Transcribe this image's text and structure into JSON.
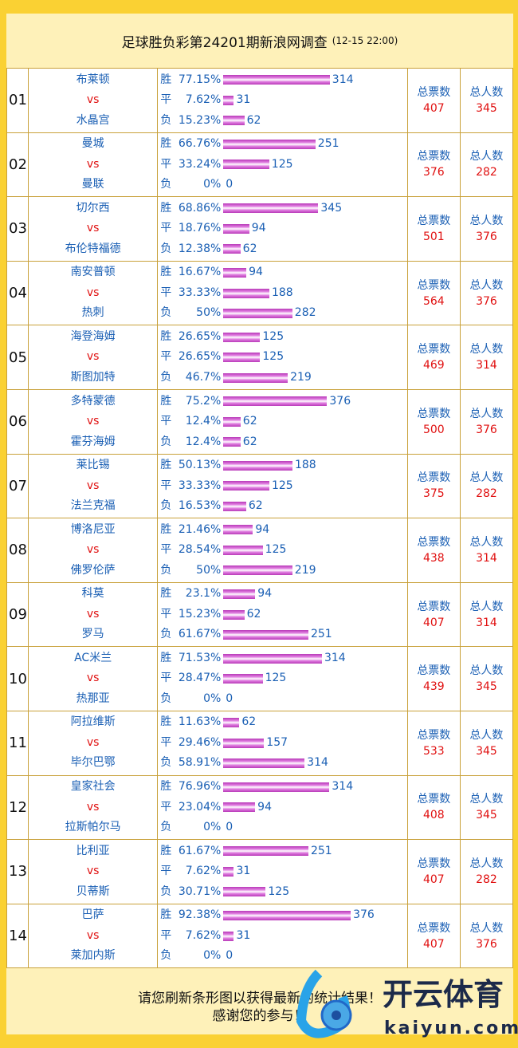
{
  "header": {
    "title": "足球胜负彩第24201期新浪网调查",
    "time": "(12-15 22:00)"
  },
  "labels": {
    "vs": "vs",
    "win": "胜",
    "draw": "平",
    "lose": "负",
    "total_votes": "总票数",
    "total_people": "总人数"
  },
  "matches": [
    {
      "no": "01",
      "home": "布莱顿",
      "away": "水晶宫",
      "win": {
        "pct": "77.15%",
        "frac": 77.15,
        "count": "314"
      },
      "draw": {
        "pct": "7.62%",
        "frac": 7.62,
        "count": "31"
      },
      "lose": {
        "pct": "15.23%",
        "frac": 15.23,
        "count": "62"
      },
      "votes": "407",
      "people": "345"
    },
    {
      "no": "02",
      "home": "曼城",
      "away": "曼联",
      "win": {
        "pct": "66.76%",
        "frac": 66.76,
        "count": "251"
      },
      "draw": {
        "pct": "33.24%",
        "frac": 33.24,
        "count": "125"
      },
      "lose": {
        "pct": "0%",
        "frac": 0,
        "count": "0"
      },
      "votes": "376",
      "people": "282"
    },
    {
      "no": "03",
      "home": "切尔西",
      "away": "布伦特福德",
      "win": {
        "pct": "68.86%",
        "frac": 68.86,
        "count": "345"
      },
      "draw": {
        "pct": "18.76%",
        "frac": 18.76,
        "count": "94"
      },
      "lose": {
        "pct": "12.38%",
        "frac": 12.38,
        "count": "62"
      },
      "votes": "501",
      "people": "376"
    },
    {
      "no": "04",
      "home": "南安普顿",
      "away": "热刺",
      "win": {
        "pct": "16.67%",
        "frac": 16.67,
        "count": "94"
      },
      "draw": {
        "pct": "33.33%",
        "frac": 33.33,
        "count": "188"
      },
      "lose": {
        "pct": "50%",
        "frac": 50,
        "count": "282"
      },
      "votes": "564",
      "people": "376"
    },
    {
      "no": "05",
      "home": "海登海姆",
      "away": "斯图加特",
      "win": {
        "pct": "26.65%",
        "frac": 26.65,
        "count": "125"
      },
      "draw": {
        "pct": "26.65%",
        "frac": 26.65,
        "count": "125"
      },
      "lose": {
        "pct": "46.7%",
        "frac": 46.7,
        "count": "219"
      },
      "votes": "469",
      "people": "314"
    },
    {
      "no": "06",
      "home": "多特蒙德",
      "away": "霍芬海姆",
      "win": {
        "pct": "75.2%",
        "frac": 75.2,
        "count": "376"
      },
      "draw": {
        "pct": "12.4%",
        "frac": 12.4,
        "count": "62"
      },
      "lose": {
        "pct": "12.4%",
        "frac": 12.4,
        "count": "62"
      },
      "votes": "500",
      "people": "376"
    },
    {
      "no": "07",
      "home": "莱比锡",
      "away": "法兰克福",
      "win": {
        "pct": "50.13%",
        "frac": 50.13,
        "count": "188"
      },
      "draw": {
        "pct": "33.33%",
        "frac": 33.33,
        "count": "125"
      },
      "lose": {
        "pct": "16.53%",
        "frac": 16.53,
        "count": "62"
      },
      "votes": "375",
      "people": "282"
    },
    {
      "no": "08",
      "home": "博洛尼亚",
      "away": "佛罗伦萨",
      "win": {
        "pct": "21.46%",
        "frac": 21.46,
        "count": "94"
      },
      "draw": {
        "pct": "28.54%",
        "frac": 28.54,
        "count": "125"
      },
      "lose": {
        "pct": "50%",
        "frac": 50,
        "count": "219"
      },
      "votes": "438",
      "people": "314"
    },
    {
      "no": "09",
      "home": "科莫",
      "away": "罗马",
      "win": {
        "pct": "23.1%",
        "frac": 23.1,
        "count": "94"
      },
      "draw": {
        "pct": "15.23%",
        "frac": 15.23,
        "count": "62"
      },
      "lose": {
        "pct": "61.67%",
        "frac": 61.67,
        "count": "251"
      },
      "votes": "407",
      "people": "314"
    },
    {
      "no": "10",
      "home": "AC米兰",
      "away": "热那亚",
      "win": {
        "pct": "71.53%",
        "frac": 71.53,
        "count": "314"
      },
      "draw": {
        "pct": "28.47%",
        "frac": 28.47,
        "count": "125"
      },
      "lose": {
        "pct": "0%",
        "frac": 0,
        "count": "0"
      },
      "votes": "439",
      "people": "345"
    },
    {
      "no": "11",
      "home": "阿拉维斯",
      "away": "毕尔巴鄂",
      "win": {
        "pct": "11.63%",
        "frac": 11.63,
        "count": "62"
      },
      "draw": {
        "pct": "29.46%",
        "frac": 29.46,
        "count": "157"
      },
      "lose": {
        "pct": "58.91%",
        "frac": 58.91,
        "count": "314"
      },
      "votes": "533",
      "people": "345"
    },
    {
      "no": "12",
      "home": "皇家社会",
      "away": "拉斯帕尔马",
      "win": {
        "pct": "76.96%",
        "frac": 76.96,
        "count": "314"
      },
      "draw": {
        "pct": "23.04%",
        "frac": 23.04,
        "count": "94"
      },
      "lose": {
        "pct": "0%",
        "frac": 0,
        "count": "0"
      },
      "votes": "408",
      "people": "345"
    },
    {
      "no": "13",
      "home": "比利亚",
      "away": "贝蒂斯",
      "win": {
        "pct": "61.67%",
        "frac": 61.67,
        "count": "251"
      },
      "draw": {
        "pct": "7.62%",
        "frac": 7.62,
        "count": "31"
      },
      "lose": {
        "pct": "30.71%",
        "frac": 30.71,
        "count": "125"
      },
      "votes": "407",
      "people": "282"
    },
    {
      "no": "14",
      "home": "巴萨",
      "away": "莱加内斯",
      "win": {
        "pct": "92.38%",
        "frac": 92.38,
        "count": "376"
      },
      "draw": {
        "pct": "7.62%",
        "frac": 7.62,
        "count": "31"
      },
      "lose": {
        "pct": "0%",
        "frac": 0,
        "count": "0"
      },
      "votes": "407",
      "people": "376"
    }
  ],
  "footer": {
    "line1": "请您刷新条形图以获得最新的统计结果！",
    "line2": "感谢您的参与！"
  },
  "watermark": {
    "brand": "开云体育",
    "domain": "kaiyun.com"
  }
}
